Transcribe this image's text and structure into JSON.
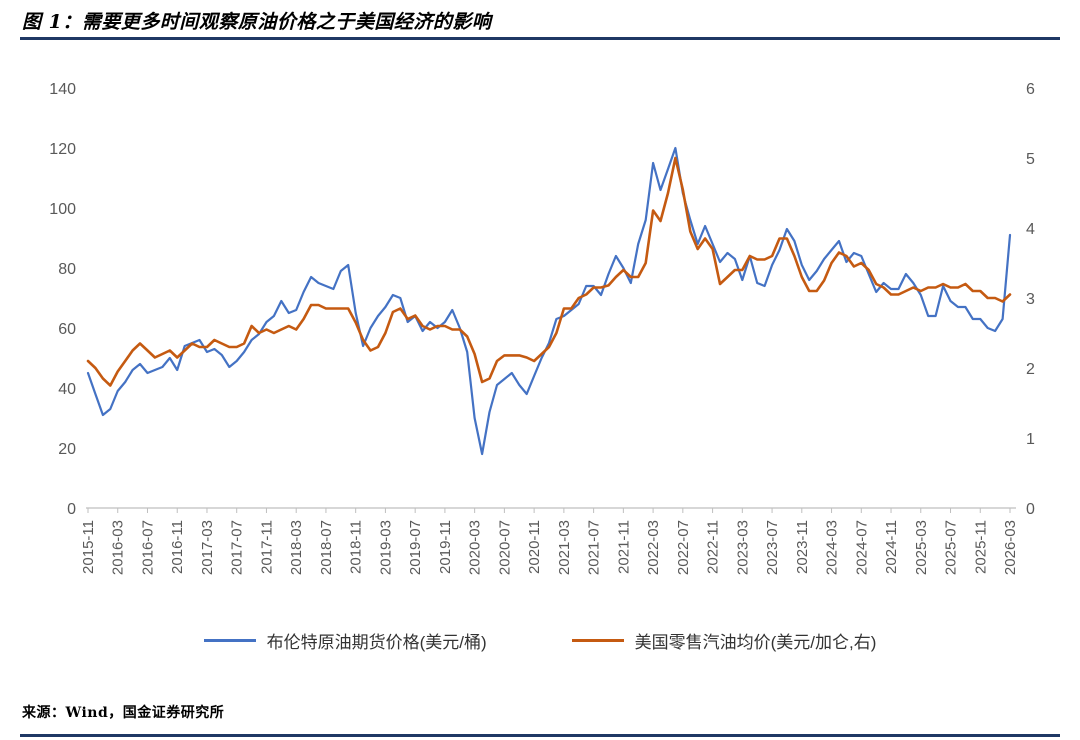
{
  "page": {
    "title": "图 1：需要更多时间观察原油价格之于美国经济的影响",
    "source": "来源：Wind，国金证券研究所"
  },
  "colors": {
    "rule": "#1F3864",
    "axis_text": "#595959",
    "axis_line": "#BFBFBF"
  },
  "chart_data": {
    "type": "line",
    "title": "图 1：需要更多时间观察原油价格之于美国经济的影响",
    "grid": false,
    "legend_position": "bottom",
    "left_axis": {
      "min": 0,
      "max": 140,
      "ticks": [
        0,
        20,
        40,
        60,
        80,
        100,
        120,
        140
      ]
    },
    "right_axis": {
      "min": 0,
      "max": 6,
      "ticks": [
        0,
        1,
        2,
        3,
        4,
        5,
        6
      ]
    },
    "x_tick_labels": [
      "2015-11",
      "2016-03",
      "2016-07",
      "2016-11",
      "2017-03",
      "2017-07",
      "2017-11",
      "2018-03",
      "2018-07",
      "2018-11",
      "2019-03",
      "2019-07",
      "2019-11",
      "2020-03",
      "2020-07",
      "2020-11",
      "2021-03",
      "2021-07",
      "2021-11",
      "2022-03",
      "2022-07",
      "2022-11",
      "2023-03",
      "2023-07",
      "2023-11",
      "2024-03",
      "2024-07",
      "2024-11",
      "2025-03",
      "2025-07",
      "2025-11",
      "2026-03"
    ],
    "x": [
      "2015-11",
      "2015-12",
      "2016-01",
      "2016-02",
      "2016-03",
      "2016-04",
      "2016-05",
      "2016-06",
      "2016-07",
      "2016-08",
      "2016-09",
      "2016-10",
      "2016-11",
      "2016-12",
      "2017-01",
      "2017-02",
      "2017-03",
      "2017-04",
      "2017-05",
      "2017-06",
      "2017-07",
      "2017-08",
      "2017-09",
      "2017-10",
      "2017-11",
      "2017-12",
      "2018-01",
      "2018-02",
      "2018-03",
      "2018-04",
      "2018-05",
      "2018-06",
      "2018-07",
      "2018-08",
      "2018-09",
      "2018-10",
      "2018-11",
      "2018-12",
      "2019-01",
      "2019-02",
      "2019-03",
      "2019-04",
      "2019-05",
      "2019-06",
      "2019-07",
      "2019-08",
      "2019-09",
      "2019-10",
      "2019-11",
      "2019-12",
      "2020-01",
      "2020-02",
      "2020-03",
      "2020-04",
      "2020-05",
      "2020-06",
      "2020-07",
      "2020-08",
      "2020-09",
      "2020-10",
      "2020-11",
      "2020-12",
      "2021-01",
      "2021-02",
      "2021-03",
      "2021-04",
      "2021-05",
      "2021-06",
      "2021-07",
      "2021-08",
      "2021-09",
      "2021-10",
      "2021-11",
      "2021-12",
      "2022-01",
      "2022-02",
      "2022-03",
      "2022-04",
      "2022-05",
      "2022-06",
      "2022-07",
      "2022-08",
      "2022-09",
      "2022-10",
      "2022-11",
      "2022-12",
      "2023-01",
      "2023-02",
      "2023-03",
      "2023-04",
      "2023-05",
      "2023-06",
      "2023-07",
      "2023-08",
      "2023-09",
      "2023-10",
      "2023-11",
      "2023-12",
      "2024-01",
      "2024-02",
      "2024-03",
      "2024-04",
      "2024-05",
      "2024-06",
      "2024-07",
      "2024-08",
      "2024-09",
      "2024-10",
      "2024-11",
      "2024-12",
      "2025-01",
      "2025-02",
      "2025-03",
      "2025-04",
      "2025-05",
      "2025-06",
      "2025-07",
      "2025-08",
      "2025-09",
      "2025-10",
      "2025-11",
      "2025-12",
      "2026-01",
      "2026-02",
      "2026-03"
    ],
    "series": [
      {
        "name": "布伦特原油期货价格(美元/桶)",
        "axis": "left",
        "color": "#4472C4",
        "values": [
          45,
          38,
          31,
          33,
          39,
          42,
          46,
          48,
          45,
          46,
          47,
          50,
          46,
          54,
          55,
          56,
          52,
          53,
          51,
          47,
          49,
          52,
          56,
          58,
          62,
          64,
          69,
          65,
          66,
          72,
          77,
          75,
          74,
          73,
          79,
          81,
          65,
          54,
          60,
          64,
          67,
          71,
          70,
          62,
          64,
          59,
          62,
          60,
          62,
          66,
          60,
          52,
          30,
          18,
          32,
          41,
          43,
          45,
          41,
          38,
          44,
          50,
          55,
          63,
          64,
          66,
          68,
          74,
          74,
          71,
          78,
          84,
          80,
          75,
          88,
          96,
          115,
          106,
          113,
          120,
          105,
          96,
          88,
          94,
          88,
          82,
          85,
          83,
          76,
          84,
          75,
          74,
          81,
          86,
          93,
          89,
          81,
          76,
          79,
          83,
          86,
          89,
          82,
          85,
          84,
          78,
          72,
          75,
          73,
          73,
          78,
          75,
          71,
          64,
          64,
          74,
          69,
          67,
          67,
          63,
          63,
          60,
          59,
          63,
          91
        ]
      },
      {
        "name": "美国零售汽油均价(美元/加仑,右)",
        "axis": "right",
        "color": "#C55A11",
        "values": [
          2.1,
          2.0,
          1.85,
          1.75,
          1.95,
          2.1,
          2.25,
          2.35,
          2.25,
          2.15,
          2.2,
          2.25,
          2.15,
          2.25,
          2.35,
          2.3,
          2.3,
          2.4,
          2.35,
          2.3,
          2.3,
          2.35,
          2.6,
          2.5,
          2.55,
          2.5,
          2.55,
          2.6,
          2.55,
          2.7,
          2.9,
          2.9,
          2.85,
          2.85,
          2.85,
          2.85,
          2.65,
          2.4,
          2.25,
          2.3,
          2.5,
          2.8,
          2.85,
          2.7,
          2.75,
          2.6,
          2.55,
          2.6,
          2.6,
          2.55,
          2.55,
          2.45,
          2.2,
          1.8,
          1.85,
          2.1,
          2.18,
          2.18,
          2.18,
          2.15,
          2.1,
          2.2,
          2.3,
          2.5,
          2.85,
          2.85,
          3.0,
          3.05,
          3.15,
          3.15,
          3.18,
          3.3,
          3.4,
          3.3,
          3.3,
          3.5,
          4.25,
          4.1,
          4.5,
          5.0,
          4.55,
          3.95,
          3.7,
          3.85,
          3.7,
          3.2,
          3.3,
          3.4,
          3.4,
          3.6,
          3.55,
          3.55,
          3.6,
          3.85,
          3.85,
          3.6,
          3.3,
          3.1,
          3.1,
          3.25,
          3.5,
          3.65,
          3.6,
          3.45,
          3.5,
          3.4,
          3.2,
          3.15,
          3.05,
          3.05,
          3.1,
          3.15,
          3.1,
          3.15,
          3.15,
          3.2,
          3.15,
          3.15,
          3.2,
          3.1,
          3.1,
          3.0,
          3.0,
          2.95,
          3.05
        ]
      }
    ]
  }
}
